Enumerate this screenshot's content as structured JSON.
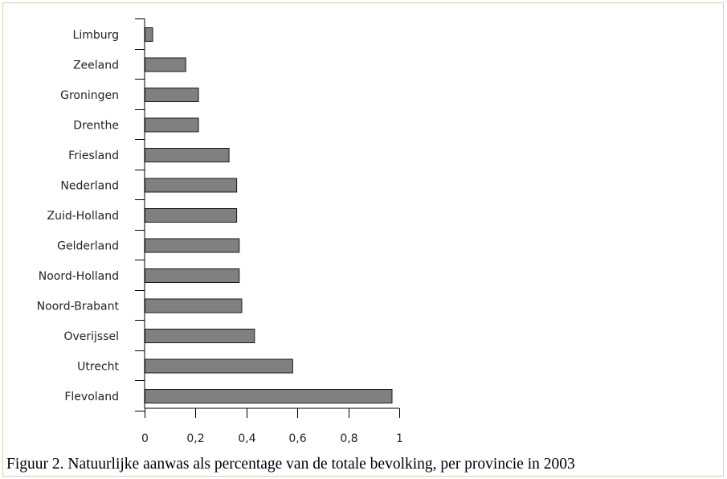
{
  "caption": "Figuur 2. Natuurlijke aanwas als percentage van de totale bevolking, per provincie in 2003",
  "colors": {
    "bar_fill": "#808080",
    "bar_stroke": "#1a1a1a",
    "axis": "#000000"
  },
  "chart_data": {
    "type": "bar",
    "orientation": "horizontal",
    "categories": [
      "Limburg",
      "Zeeland",
      "Groningen",
      "Drenthe",
      "Friesland",
      "Nederland",
      "Zuid-Holland",
      "Gelderland",
      "Noord-Holland",
      "Noord-Brabant",
      "Overijssel",
      "Utrecht",
      "Flevoland"
    ],
    "values": [
      0.03,
      0.16,
      0.21,
      0.21,
      0.33,
      0.36,
      0.36,
      0.37,
      0.37,
      0.38,
      0.43,
      0.58,
      0.97
    ],
    "xlim": [
      0,
      1
    ],
    "xticks": [
      0,
      0.2,
      0.4,
      0.6,
      0.8,
      1
    ],
    "xtick_labels": [
      "0",
      "0,2",
      "0,4",
      "0,6",
      "0,8",
      "1"
    ],
    "title": "",
    "xlabel": "",
    "ylabel": "",
    "grid": false,
    "legend": false
  }
}
